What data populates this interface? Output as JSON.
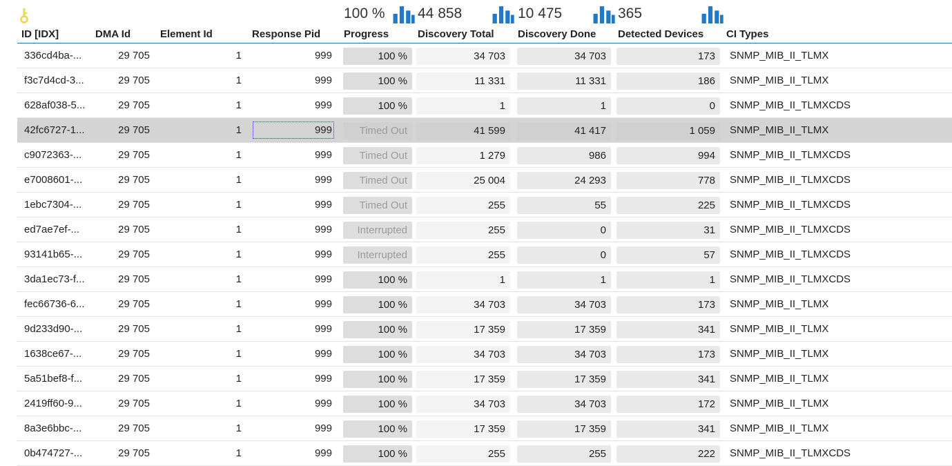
{
  "summary": {
    "progress": "100 %",
    "discovery_total": "44 858",
    "discovery_done": "10 475",
    "detected_devices": "365"
  },
  "columns": {
    "id": "ID [IDX]",
    "dma": "DMA Id",
    "element": "Element Id",
    "pid": "Response Pid",
    "progress": "Progress",
    "dtotal": "Discovery Total",
    "ddone": "Discovery Done",
    "detected": "Detected Devices",
    "ci": "CI Types"
  },
  "rows": [
    {
      "id": "336cd4ba-...",
      "dma": "29 705",
      "el": "1",
      "pid": "999",
      "progress": "100 %",
      "dtotal": "34 703",
      "ddone": "34 703",
      "detected": "173",
      "ci": "SNMP_MIB_II_TLMX"
    },
    {
      "id": "f3c7d4cd-3...",
      "dma": "29 705",
      "el": "1",
      "pid": "999",
      "progress": "100 %",
      "dtotal": "11 331",
      "ddone": "11 331",
      "detected": "186",
      "ci": "SNMP_MIB_II_TLMX"
    },
    {
      "id": "628af038-5...",
      "dma": "29 705",
      "el": "1",
      "pid": "999",
      "progress": "100 %",
      "dtotal": "1",
      "ddone": "1",
      "detected": "0",
      "ci": "SNMP_MIB_II_TLMXCDS"
    },
    {
      "id": "42fc6727-1...",
      "dma": "29 705",
      "el": "1",
      "pid": "999",
      "progress": "Timed Out",
      "dtotal": "41 599",
      "ddone": "41 417",
      "detected": "1 059",
      "ci": "SNMP_MIB_II_TLMX"
    },
    {
      "id": "c9072363-...",
      "dma": "29 705",
      "el": "1",
      "pid": "999",
      "progress": "Timed Out",
      "dtotal": "1 279",
      "ddone": "986",
      "detected": "994",
      "ci": "SNMP_MIB_II_TLMXCDS"
    },
    {
      "id": "e7008601-...",
      "dma": "29 705",
      "el": "1",
      "pid": "999",
      "progress": "Timed Out",
      "dtotal": "25 004",
      "ddone": "24 293",
      "detected": "778",
      "ci": "SNMP_MIB_II_TLMXCDS"
    },
    {
      "id": "1ebc7304-...",
      "dma": "29 705",
      "el": "1",
      "pid": "999",
      "progress": "Timed Out",
      "dtotal": "255",
      "ddone": "55",
      "detected": "225",
      "ci": "SNMP_MIB_II_TLMXCDS"
    },
    {
      "id": "ed7ae7ef-...",
      "dma": "29 705",
      "el": "1",
      "pid": "999",
      "progress": "Interrupted",
      "dtotal": "255",
      "ddone": "0",
      "detected": "31",
      "ci": "SNMP_MIB_II_TLMXCDS"
    },
    {
      "id": "93141b65-...",
      "dma": "29 705",
      "el": "1",
      "pid": "999",
      "progress": "Interrupted",
      "dtotal": "255",
      "ddone": "0",
      "detected": "57",
      "ci": "SNMP_MIB_II_TLMXCDS"
    },
    {
      "id": "3da1ec73-f...",
      "dma": "29 705",
      "el": "1",
      "pid": "999",
      "progress": "100 %",
      "dtotal": "1",
      "ddone": "1",
      "detected": "1",
      "ci": "SNMP_MIB_II_TLMXCDS"
    },
    {
      "id": "fec66736-6...",
      "dma": "29 705",
      "el": "1",
      "pid": "999",
      "progress": "100 %",
      "dtotal": "34 703",
      "ddone": "34 703",
      "detected": "173",
      "ci": "SNMP_MIB_II_TLMX"
    },
    {
      "id": "9d233d90-...",
      "dma": "29 705",
      "el": "1",
      "pid": "999",
      "progress": "100 %",
      "dtotal": "17 359",
      "ddone": "17 359",
      "detected": "341",
      "ci": "SNMP_MIB_II_TLMX"
    },
    {
      "id": "1638ce67-...",
      "dma": "29 705",
      "el": "1",
      "pid": "999",
      "progress": "100 %",
      "dtotal": "34 703",
      "ddone": "34 703",
      "detected": "173",
      "ci": "SNMP_MIB_II_TLMX"
    },
    {
      "id": "5a51bef8-f...",
      "dma": "29 705",
      "el": "1",
      "pid": "999",
      "progress": "100 %",
      "dtotal": "17 359",
      "ddone": "17 359",
      "detected": "341",
      "ci": "SNMP_MIB_II_TLMX"
    },
    {
      "id": "2419ff60-9...",
      "dma": "29 705",
      "el": "1",
      "pid": "999",
      "progress": "100 %",
      "dtotal": "34 703",
      "ddone": "34 703",
      "detected": "172",
      "ci": "SNMP_MIB_II_TLMX"
    },
    {
      "id": "8a3e6bbc-...",
      "dma": "29 705",
      "el": "1",
      "pid": "999",
      "progress": "100 %",
      "dtotal": "17 359",
      "ddone": "17 359",
      "detected": "341",
      "ci": "SNMP_MIB_II_TLMX"
    },
    {
      "id": "0b474727-...",
      "dma": "29 705",
      "el": "1",
      "pid": "999",
      "progress": "100 %",
      "dtotal": "255",
      "ddone": "255",
      "detected": "222",
      "ci": "SNMP_MIB_II_TLMXCDS"
    }
  ],
  "selected_row": 3,
  "colors": {
    "accent": "#2b6cb0",
    "chart_icon": "#1f78c8",
    "key_icon": "#e8d84a",
    "selected_row": "#d4d4d4"
  }
}
